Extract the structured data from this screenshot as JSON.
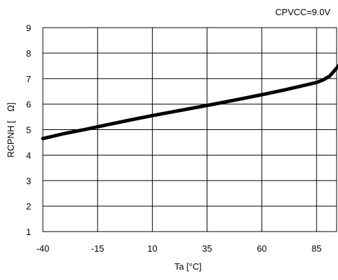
{
  "chart_data": {
    "type": "line",
    "annotation": "CPVCC=9.0V",
    "xlabel": "Ta [°C]",
    "ylabel": "RCPNH [　Ω]",
    "xlim": [
      -40,
      95
    ],
    "ylim": [
      1,
      9
    ],
    "xticks": [
      -40,
      -15,
      10,
      35,
      60,
      85
    ],
    "yticks": [
      1,
      2,
      3,
      4,
      5,
      6,
      7,
      8,
      9
    ],
    "grid": true,
    "series": [
      {
        "x": [
          -40,
          -30,
          -20,
          -10,
          0,
          10,
          20,
          30,
          40,
          50,
          60,
          70,
          80,
          85,
          88,
          91,
          93,
          95
        ],
        "y": [
          4.65,
          4.85,
          5.02,
          5.2,
          5.38,
          5.55,
          5.71,
          5.87,
          6.03,
          6.2,
          6.37,
          6.55,
          6.75,
          6.85,
          6.95,
          7.1,
          7.3,
          7.5
        ]
      }
    ]
  }
}
